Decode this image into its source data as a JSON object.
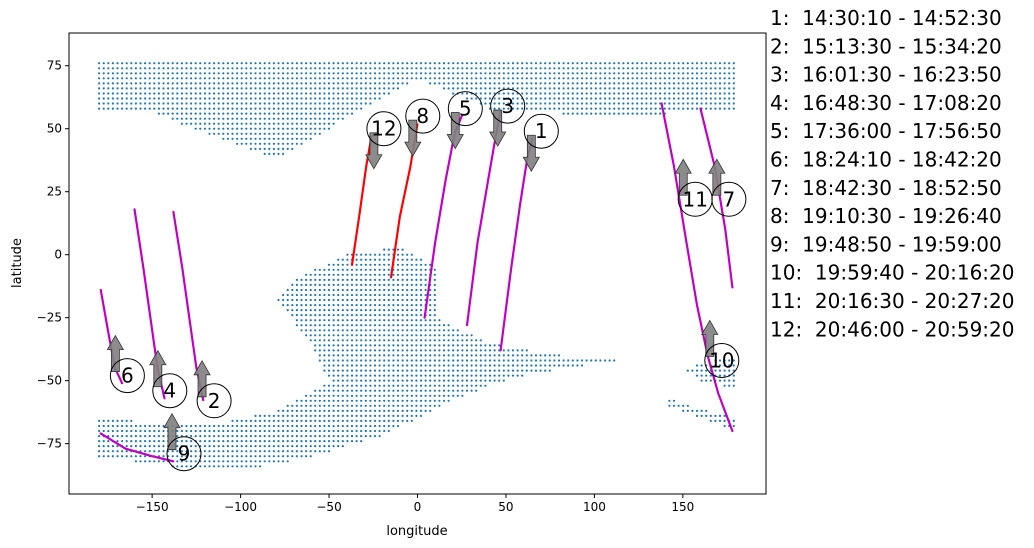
{
  "chart_data": {
    "type": "scatter",
    "xlabel": "longitude",
    "ylabel": "latitude",
    "xlim": [
      -197,
      197
    ],
    "ylim": [
      -95,
      88
    ],
    "xticks": [
      -150,
      -100,
      -50,
      0,
      50,
      100,
      150
    ],
    "yticks": [
      75,
      50,
      25,
      0,
      -25,
      -50,
      -75
    ],
    "grid": false,
    "colors": {
      "coverage_points": "#1f77b4",
      "track_day": "#c000c0",
      "track_night": "#ff0000",
      "arrow": "#808080"
    },
    "coverage_regions": [
      {
        "polygon": [
          [
            -180,
            77
          ],
          [
            180,
            77
          ],
          [
            180,
            57
          ],
          [
            100,
            55
          ],
          [
            40,
            58
          ],
          [
            0,
            70
          ],
          [
            -50,
            50
          ],
          [
            -80,
            38
          ],
          [
            -120,
            48
          ],
          [
            -150,
            57
          ],
          [
            -180,
            57
          ]
        ]
      },
      {
        "polygon": [
          [
            -180,
            -65
          ],
          [
            -120,
            -68
          ],
          [
            -80,
            -62
          ],
          [
            -50,
            -50
          ],
          [
            -60,
            -35
          ],
          [
            -80,
            -18
          ],
          [
            -70,
            -10
          ],
          [
            -40,
            0
          ],
          [
            -10,
            3
          ],
          [
            10,
            -5
          ],
          [
            10,
            -25
          ],
          [
            40,
            -35
          ],
          [
            80,
            -40
          ],
          [
            120,
            -41
          ],
          [
            60,
            -48
          ],
          [
            40,
            -52
          ],
          [
            20,
            -58
          ],
          [
            -20,
            -72
          ],
          [
            -60,
            -80
          ],
          [
            -100,
            -86
          ],
          [
            -130,
            -85
          ],
          [
            -180,
            -80
          ]
        ]
      },
      {
        "polygon": [
          [
            140,
            -57
          ],
          [
            180,
            -65
          ],
          [
            180,
            -70
          ],
          [
            140,
            -60
          ]
        ]
      },
      {
        "polygon": [
          [
            150,
            -45
          ],
          [
            180,
            -40
          ],
          [
            180,
            -53
          ],
          [
            160,
            -50
          ]
        ]
      }
    ],
    "tracks": [
      {
        "color": "day",
        "points": [
          [
            47,
            -38
          ],
          [
            53,
            -5
          ],
          [
            58,
            20
          ],
          [
            62,
            38
          ],
          [
            65,
            46
          ]
        ]
      },
      {
        "color": "day",
        "points": [
          [
            28,
            -28
          ],
          [
            34,
            5
          ],
          [
            40,
            30
          ],
          [
            44,
            46
          ],
          [
            47,
            57
          ]
        ]
      },
      {
        "color": "day",
        "points": [
          [
            4,
            -25
          ],
          [
            10,
            5
          ],
          [
            16,
            30
          ],
          [
            21,
            48
          ],
          [
            25,
            55
          ]
        ]
      },
      {
        "color": "night",
        "points": [
          [
            -15,
            -9
          ],
          [
            -10,
            15
          ],
          [
            -4,
            35
          ],
          [
            0,
            52
          ]
        ]
      },
      {
        "color": "night",
        "points": [
          [
            -37,
            -4
          ],
          [
            -33,
            15
          ],
          [
            -29,
            35
          ],
          [
            -26,
            47
          ]
        ]
      },
      {
        "color": "day",
        "points": [
          [
            -138,
            17
          ],
          [
            -133,
            -5
          ],
          [
            -129,
            -25
          ],
          [
            -125,
            -45
          ],
          [
            -121,
            -58
          ]
        ]
      },
      {
        "color": "day",
        "points": [
          [
            -160,
            18
          ],
          [
            -155,
            -5
          ],
          [
            -151,
            -25
          ],
          [
            -147,
            -45
          ],
          [
            -143,
            -57
          ]
        ]
      },
      {
        "color": "day",
        "points": [
          [
            -179,
            -14
          ],
          [
            -175,
            -30
          ],
          [
            -171,
            -45
          ],
          [
            -167,
            -51
          ]
        ]
      },
      {
        "color": "day",
        "points": [
          [
            -179,
            -71
          ],
          [
            -165,
            -77
          ],
          [
            -150,
            -80
          ],
          [
            -138,
            -82
          ]
        ]
      },
      {
        "color": "day",
        "points": [
          [
            138,
            60
          ],
          [
            145,
            35
          ],
          [
            152,
            5
          ],
          [
            158,
            -20
          ],
          [
            164,
            -40
          ],
          [
            170,
            -55
          ],
          [
            178,
            -70
          ]
        ]
      },
      {
        "color": "day",
        "points": [
          [
            160,
            58
          ],
          [
            168,
            35
          ],
          [
            174,
            10
          ],
          [
            178,
            -13
          ]
        ]
      }
    ],
    "markers": [
      {
        "label": "1",
        "lon": 70,
        "lat": 49,
        "arrow": "down"
      },
      {
        "label": "2",
        "lon": -115,
        "lat": -58,
        "arrow": "up"
      },
      {
        "label": "3",
        "lon": 51,
        "lat": 59,
        "arrow": "down"
      },
      {
        "label": "4",
        "lon": -140,
        "lat": -54,
        "arrow": "up"
      },
      {
        "label": "5",
        "lon": 27,
        "lat": 58,
        "arrow": "down"
      },
      {
        "label": "6",
        "lon": -164,
        "lat": -48,
        "arrow": "up"
      },
      {
        "label": "7",
        "lon": 176,
        "lat": 22,
        "arrow": "up"
      },
      {
        "label": "8",
        "lon": 3,
        "lat": 55,
        "arrow": "down"
      },
      {
        "label": "9",
        "lon": -132,
        "lat": -79,
        "arrow": "up"
      },
      {
        "label": "10",
        "lon": 172,
        "lat": -42,
        "arrow": "up"
      },
      {
        "label": "11",
        "lon": 157,
        "lat": 22,
        "arrow": "up"
      },
      {
        "label": "12",
        "lon": -19,
        "lat": 50,
        "arrow": "down"
      }
    ],
    "legend": [
      "1:  14:30:10 - 14:52:30",
      "2:  15:13:30 - 15:34:20",
      "3:  16:01:30 - 16:23:50",
      "4:  16:48:30 - 17:08:20",
      "5:  17:36:00 - 17:56:50",
      "6:  18:24:10 - 18:42:20",
      "7:  18:42:30 - 18:52:50",
      "8:  19:10:30 - 19:26:40",
      "9:  19:48:50 - 19:59:00",
      "10:  19:59:40 - 20:16:20",
      "11:  20:16:30 - 20:27:20",
      "12:  20:46:00 - 20:59:20"
    ],
    "legend_placement": "right"
  }
}
